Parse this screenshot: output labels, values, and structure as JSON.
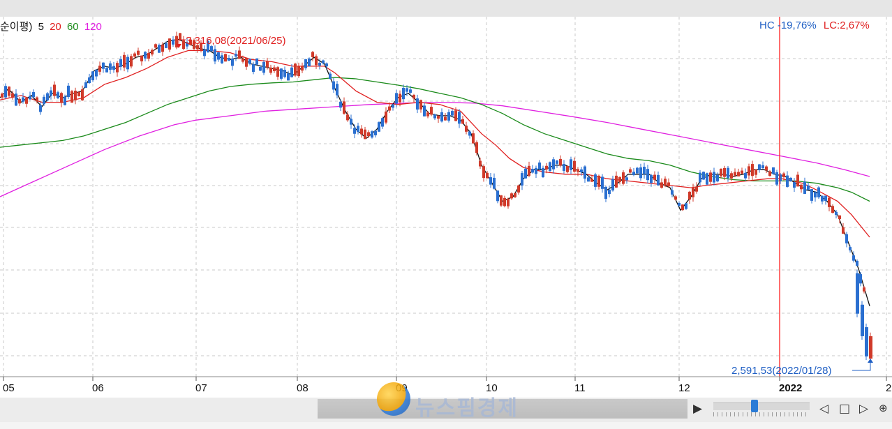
{
  "legend": {
    "prefix": "순이평)",
    "items": [
      {
        "label": "5",
        "color": "#111111"
      },
      {
        "label": "20",
        "color": "#e02020"
      },
      {
        "label": "60",
        "color": "#1a8a1a"
      },
      {
        "label": "120",
        "color": "#e020e0"
      }
    ]
  },
  "hc_lc": {
    "hc_text": "HC -19,76%",
    "lc_text": "LC:2,67%"
  },
  "annotations": {
    "high_label": "3,316,08(2021/06/25)",
    "low_label": "2,591,53(2022/01/28)"
  },
  "watermark": {
    "text": "뉴스핌경제"
  },
  "chart_data": {
    "type": "candlestick",
    "x_tick_labels": [
      "05",
      "06",
      "07",
      "08",
      "09",
      "10",
      "11",
      "12",
      "2022",
      "2"
    ],
    "y_range": [
      2560,
      3360
    ],
    "grid": true,
    "high": {
      "value": 3316.08,
      "date": "2021/06/25"
    },
    "low": {
      "value": 2591.53,
      "date": "2022/01/28"
    },
    "crosshair_month": "2022-01",
    "series": [
      {
        "name": "5",
        "color": "#111111"
      },
      {
        "name": "20",
        "color": "#e02020"
      },
      {
        "name": "60",
        "color": "#1a8a1a"
      },
      {
        "name": "120",
        "color": "#e020e0"
      }
    ],
    "ma_values": {
      "ma5": [
        [
          0,
          3180
        ],
        [
          12,
          3200
        ],
        [
          30,
          3170
        ],
        [
          45,
          3185
        ],
        [
          60,
          3160
        ],
        [
          75,
          3190
        ],
        [
          90,
          3180
        ],
        [
          105,
          3190
        ],
        [
          118,
          3195
        ],
        [
          135,
          3240
        ],
        [
          150,
          3250
        ],
        [
          165,
          3245
        ],
        [
          180,
          3255
        ],
        [
          195,
          3270
        ],
        [
          210,
          3275
        ],
        [
          225,
          3290
        ],
        [
          240,
          3305
        ],
        [
          255,
          3310
        ],
        [
          270,
          3300
        ],
        [
          285,
          3290
        ],
        [
          300,
          3285
        ],
        [
          315,
          3270
        ],
        [
          330,
          3265
        ],
        [
          345,
          3270
        ],
        [
          360,
          3255
        ],
        [
          375,
          3250
        ],
        [
          390,
          3245
        ],
        [
          405,
          3240
        ],
        [
          420,
          3230
        ],
        [
          435,
          3250
        ],
        [
          450,
          3270
        ],
        [
          465,
          3255
        ],
        [
          480,
          3200
        ],
        [
          495,
          3150
        ],
        [
          510,
          3110
        ],
        [
          525,
          3090
        ],
        [
          540,
          3110
        ],
        [
          555,
          3150
        ],
        [
          570,
          3180
        ],
        [
          585,
          3190
        ],
        [
          600,
          3170
        ],
        [
          615,
          3145
        ],
        [
          630,
          3140
        ],
        [
          645,
          3140
        ],
        [
          660,
          3130
        ],
        [
          675,
          3100
        ],
        [
          690,
          3030
        ],
        [
          705,
          2990
        ],
        [
          720,
          2950
        ],
        [
          735,
          2960
        ],
        [
          750,
          3000
        ],
        [
          765,
          3020
        ],
        [
          780,
          3020
        ],
        [
          795,
          3030
        ],
        [
          810,
          3030
        ],
        [
          825,
          3020
        ],
        [
          840,
          3010
        ],
        [
          855,
          2990
        ],
        [
          870,
          2975
        ],
        [
          885,
          2990
        ],
        [
          900,
          3010
        ],
        [
          915,
          3010
        ],
        [
          930,
          3010
        ],
        [
          945,
          2990
        ],
        [
          960,
          2980
        ],
        [
          975,
          2930
        ],
        [
          990,
          2960
        ],
        [
          1005,
          3000
        ],
        [
          1020,
          3010
        ],
        [
          1035,
          3010
        ],
        [
          1050,
          3005
        ],
        [
          1065,
          3010
        ],
        [
          1080,
          3020
        ],
        [
          1095,
          3020
        ],
        [
          1110,
          3010
        ],
        [
          1125,
          3005
        ],
        [
          1140,
          2990
        ],
        [
          1155,
          2975
        ],
        [
          1170,
          2970
        ],
        [
          1185,
          2950
        ],
        [
          1200,
          2920
        ],
        [
          1215,
          2860
        ],
        [
          1230,
          2800
        ],
        [
          1246,
          2717
        ]
      ],
      "ma20": [
        [
          0,
          3175
        ],
        [
          30,
          3185
        ],
        [
          60,
          3170
        ],
        [
          90,
          3170
        ],
        [
          120,
          3180
        ],
        [
          150,
          3210
        ],
        [
          180,
          3225
        ],
        [
          210,
          3245
        ],
        [
          240,
          3270
        ],
        [
          270,
          3285
        ],
        [
          300,
          3285
        ],
        [
          330,
          3280
        ],
        [
          360,
          3265
        ],
        [
          390,
          3260
        ],
        [
          420,
          3250
        ],
        [
          450,
          3250
        ],
        [
          465,
          3250
        ],
        [
          480,
          3235
        ],
        [
          510,
          3195
        ],
        [
          540,
          3170
        ],
        [
          570,
          3165
        ],
        [
          600,
          3170
        ],
        [
          630,
          3165
        ],
        [
          660,
          3150
        ],
        [
          690,
          3100
        ],
        [
          710,
          3075
        ],
        [
          730,
          3045
        ],
        [
          750,
          3025
        ],
        [
          780,
          3015
        ],
        [
          810,
          3010
        ],
        [
          840,
          3010
        ],
        [
          870,
          3000
        ],
        [
          900,
          2995
        ],
        [
          930,
          2990
        ],
        [
          960,
          2985
        ],
        [
          990,
          2980
        ],
        [
          1010,
          2985
        ],
        [
          1040,
          2990
        ],
        [
          1070,
          2995
        ],
        [
          1100,
          3000
        ],
        [
          1120,
          3000
        ],
        [
          1150,
          2990
        ],
        [
          1170,
          2975
        ],
        [
          1200,
          2950
        ],
        [
          1220,
          2920
        ],
        [
          1246,
          2870
        ]
      ],
      "ma60": [
        [
          0,
          3070
        ],
        [
          30,
          3075
        ],
        [
          60,
          3080
        ],
        [
          90,
          3085
        ],
        [
          120,
          3095
        ],
        [
          150,
          3110
        ],
        [
          180,
          3125
        ],
        [
          210,
          3145
        ],
        [
          240,
          3165
        ],
        [
          270,
          3180
        ],
        [
          300,
          3195
        ],
        [
          330,
          3205
        ],
        [
          360,
          3210
        ],
        [
          390,
          3213
        ],
        [
          420,
          3215
        ],
        [
          450,
          3220
        ],
        [
          480,
          3225
        ],
        [
          510,
          3222
        ],
        [
          540,
          3215
        ],
        [
          570,
          3208
        ],
        [
          600,
          3200
        ],
        [
          630,
          3190
        ],
        [
          660,
          3180
        ],
        [
          690,
          3165
        ],
        [
          720,
          3145
        ],
        [
          750,
          3120
        ],
        [
          780,
          3100
        ],
        [
          810,
          3085
        ],
        [
          840,
          3070
        ],
        [
          870,
          3055
        ],
        [
          900,
          3045
        ],
        [
          930,
          3040
        ],
        [
          960,
          3030
        ],
        [
          990,
          3015
        ],
        [
          1020,
          3005
        ],
        [
          1050,
          2998
        ],
        [
          1080,
          2995
        ],
        [
          1110,
          2995
        ],
        [
          1140,
          2995
        ],
        [
          1170,
          2990
        ],
        [
          1200,
          2980
        ],
        [
          1220,
          2970
        ],
        [
          1246,
          2950
        ]
      ],
      "ma120": [
        [
          0,
          2960
        ],
        [
          50,
          2995
        ],
        [
          100,
          3030
        ],
        [
          150,
          3065
        ],
        [
          200,
          3095
        ],
        [
          250,
          3120
        ],
        [
          280,
          3130
        ],
        [
          330,
          3140
        ],
        [
          380,
          3150
        ],
        [
          430,
          3155
        ],
        [
          480,
          3160
        ],
        [
          530,
          3165
        ],
        [
          580,
          3168
        ],
        [
          630,
          3170
        ],
        [
          680,
          3168
        ],
        [
          720,
          3162
        ],
        [
          770,
          3150
        ],
        [
          820,
          3138
        ],
        [
          870,
          3125
        ],
        [
          920,
          3110
        ],
        [
          970,
          3095
        ],
        [
          1020,
          3080
        ],
        [
          1070,
          3065
        ],
        [
          1120,
          3050
        ],
        [
          1170,
          3035
        ],
        [
          1210,
          3020
        ],
        [
          1246,
          3005
        ]
      ]
    }
  }
}
